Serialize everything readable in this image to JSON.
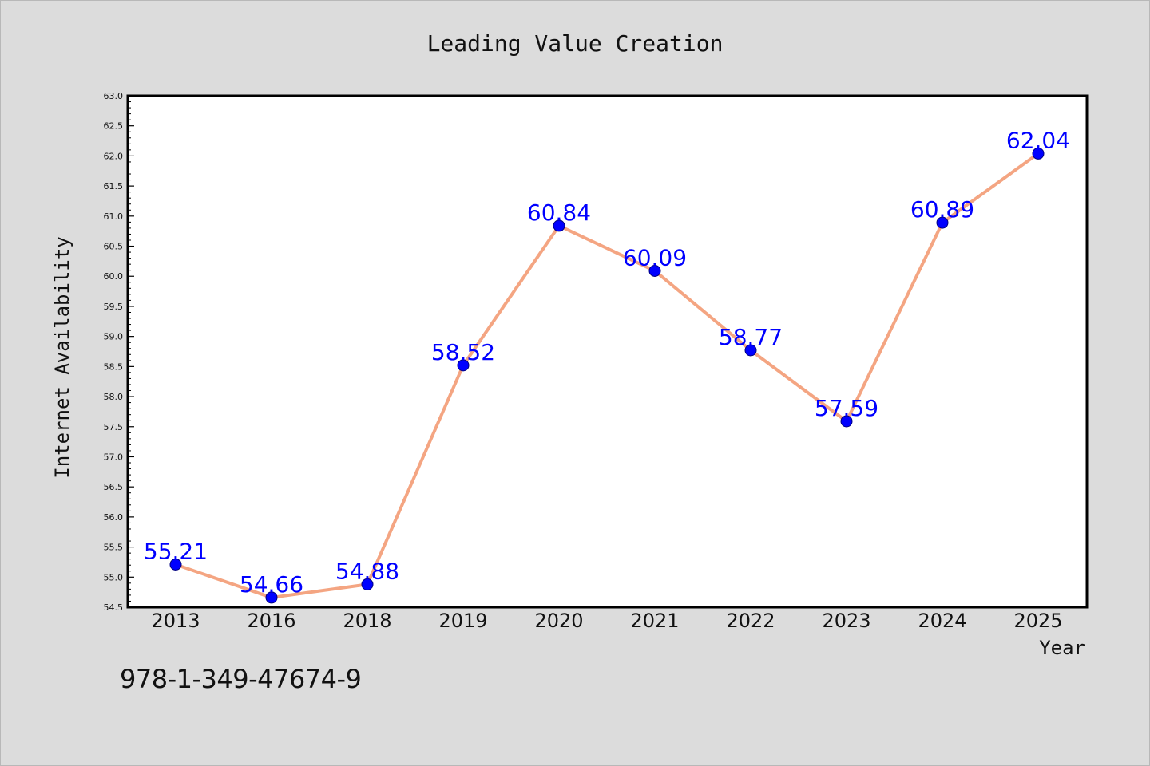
{
  "footer": {
    "isbn": "978-1-349-47674-9"
  },
  "colors": {
    "background": "#dcdcdc",
    "plot_background": "#ffffff",
    "line": "#f4a582",
    "marker": "#0000ff",
    "data_label": "#0000ff",
    "text": "#111111"
  },
  "chart_data": {
    "type": "line",
    "title": "Leading Value Creation",
    "xlabel": "Year",
    "ylabel": "Internet Availability",
    "categories": [
      "2013",
      "2016",
      "2018",
      "2019",
      "2020",
      "2021",
      "2022",
      "2023",
      "2024",
      "2025"
    ],
    "series": [
      {
        "values": [
          55.21,
          54.66,
          54.88,
          58.52,
          60.84,
          60.09,
          58.77,
          57.59,
          60.89,
          62.04
        ],
        "data_labels": [
          "55.21",
          "54.66",
          "54.88",
          "58.52",
          "60.84",
          "60.09",
          "58.77",
          "57.59",
          "60.89",
          "62.04"
        ]
      }
    ],
    "ylim": [
      54.5,
      63.0
    ],
    "yticks": [
      "54.5",
      "55.0",
      "55.5",
      "56.0",
      "56.5",
      "57.0",
      "57.5",
      "58.0",
      "58.5",
      "59.0",
      "59.5",
      "60.0",
      "60.5",
      "61.0",
      "61.5",
      "62.0",
      "62.5",
      "63.0"
    ],
    "grid": false,
    "legend": "none",
    "marker": "circle"
  }
}
